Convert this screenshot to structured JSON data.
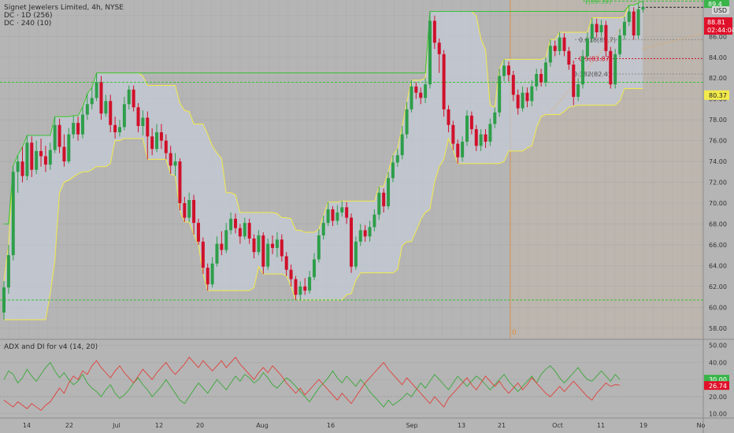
{
  "header": {
    "symbol_line": "Signet Jewelers Limited, 4h, NYSE",
    "indicator_1": "DC · 1D (256)",
    "indicator_2": "DC · 240 (10)",
    "currency": "USD"
  },
  "lower_pane": {
    "title": "ADX and DI for v4 (14, 20)"
  },
  "price_axis": {
    "ticks": [
      "86.00",
      "84.00",
      "82.00",
      "80.00",
      "78.00",
      "76.00",
      "74.00",
      "72.00",
      "70.00",
      "68.00",
      "66.00",
      "64.00",
      "62.00",
      "60.00",
      "58.00"
    ],
    "top_tag": "89.4",
    "price_tag_value": "88.81",
    "price_tag_countdown": "02:44:04",
    "level_tag": "80.37"
  },
  "oscillator_axis": {
    "ticks": [
      "50.00",
      "40.00",
      "30.00",
      "20.00",
      "10.00"
    ],
    "green_tag": "30.00",
    "red_tag": "26.74"
  },
  "time_axis": {
    "labels": [
      "14",
      "22",
      "Jul",
      "12",
      "20",
      "Aug",
      "16",
      "Sep",
      "13",
      "21",
      "Oct",
      "11",
      "19",
      "No"
    ]
  },
  "fib_labels": {
    "level_1": "1(89.39)",
    "level_0618": "0.618(85.7)",
    "level_05": "0.5(83.87)",
    "level_0382": "0.382(82.4)"
  },
  "marker": {
    "label": "0"
  },
  "colors": {
    "bull": "#2e9e4a",
    "bear": "#d0102a",
    "donchian": "#f2ea4a",
    "dc_fill": "#c4ccd8",
    "green_line": "#36c236",
    "fib": "#8a8a8a",
    "di_plus": "#3aa83a",
    "di_minus": "#e0403a"
  },
  "chart_data": [
    {
      "type": "candlestick",
      "title": "Signet Jewelers Limited, 4h, NYSE",
      "ylim": [
        57,
        89.5
      ],
      "levels": [
        60.7,
        81.6,
        89.4,
        88.8
      ],
      "fib": {
        "high": 89.39,
        "0.618": 85.7,
        "0.5": 83.87,
        "0.382": 82.4
      },
      "candles": [
        [
          59.5,
          61.9,
          58.8,
          62.5
        ],
        [
          61.9,
          65,
          61.3,
          66
        ],
        [
          65,
          73,
          64.5,
          73.6
        ],
        [
          73,
          74,
          71,
          74.6
        ],
        [
          74,
          72.6,
          72,
          75.4
        ],
        [
          72.6,
          75.8,
          72.2,
          76.5
        ],
        [
          75.8,
          73.2,
          72.5,
          76.4
        ],
        [
          73.2,
          75,
          72.8,
          76
        ],
        [
          75,
          74.5,
          73.5,
          76.2
        ],
        [
          74.5,
          73.7,
          73,
          75.5
        ],
        [
          73.7,
          75.1,
          73.2,
          75.8
        ],
        [
          75.1,
          77.5,
          74.8,
          78.3
        ],
        [
          77.5,
          75.4,
          74.8,
          78.1
        ],
        [
          75.4,
          74,
          73.5,
          76.6
        ],
        [
          74,
          76.6,
          73.8,
          77.2
        ],
        [
          76.6,
          77.7,
          76.2,
          78.4
        ],
        [
          77.7,
          76.6,
          76,
          78.3
        ],
        [
          76.6,
          78.5,
          76.2,
          79.2
        ],
        [
          78.5,
          79.5,
          78,
          80.5
        ],
        [
          79.5,
          80.1,
          79,
          81.1
        ],
        [
          80.1,
          81.6,
          79.8,
          82.5
        ],
        [
          81.6,
          78.6,
          78,
          82.2
        ],
        [
          78.6,
          79.8,
          78.3,
          80.4
        ],
        [
          79.8,
          77.5,
          76.8,
          80.4
        ],
        [
          77.5,
          76.8,
          76.2,
          78.3
        ],
        [
          76.8,
          77.3,
          76.4,
          78
        ],
        [
          77.3,
          79.5,
          77,
          80.2
        ],
        [
          79.5,
          80.9,
          79,
          81.3
        ],
        [
          80.9,
          79.2,
          78.8,
          81.3
        ],
        [
          79.2,
          77.4,
          76.8,
          79.6
        ],
        [
          77.4,
          78.2,
          76.5,
          78.9
        ],
        [
          78.2,
          76.4,
          74.2,
          78.8
        ],
        [
          76.4,
          75.2,
          74.6,
          77.2
        ],
        [
          75.2,
          76.8,
          74.9,
          77.6
        ],
        [
          76.8,
          76,
          75.2,
          77.6
        ],
        [
          76,
          74.8,
          74.2,
          76.6
        ],
        [
          74.8,
          73.6,
          72.8,
          75.5
        ],
        [
          73.6,
          74,
          72.6,
          74.8
        ],
        [
          74,
          70,
          69.3,
          74.3
        ],
        [
          70,
          68.6,
          68.2,
          70.6
        ],
        [
          68.6,
          70.3,
          68.2,
          71
        ],
        [
          70.3,
          68.1,
          67,
          70.8
        ],
        [
          68.1,
          66.3,
          66,
          68.5
        ],
        [
          66.3,
          63.8,
          63.2,
          66.7
        ],
        [
          63.8,
          62.2,
          61.6,
          64.2
        ],
        [
          62.2,
          64.2,
          61.9,
          64.8
        ],
        [
          64.2,
          66.1,
          63.9,
          66.8
        ],
        [
          66.1,
          65.5,
          65,
          67.3
        ],
        [
          65.5,
          67.4,
          65.2,
          68.1
        ],
        [
          67.4,
          68.5,
          67,
          69.1
        ],
        [
          68.5,
          67.6,
          67.1,
          69
        ],
        [
          67.6,
          66.8,
          66.1,
          68
        ],
        [
          66.8,
          68.1,
          66.5,
          68.6
        ],
        [
          68.1,
          66.6,
          66.1,
          68.5
        ],
        [
          66.6,
          65.3,
          64.7,
          67
        ],
        [
          65.3,
          66.9,
          65,
          67.4
        ],
        [
          66.9,
          63.9,
          63.2,
          67.2
        ],
        [
          63.9,
          66.1,
          63.6,
          66.6
        ],
        [
          66.1,
          65.7,
          65.1,
          66.9
        ],
        [
          65.7,
          66.5,
          64.8,
          67.2
        ],
        [
          66.5,
          64.9,
          64.4,
          67
        ],
        [
          64.9,
          63.6,
          63,
          65.3
        ],
        [
          63.6,
          62.7,
          62,
          64.1
        ],
        [
          62.7,
          61.2,
          60.7,
          63
        ],
        [
          61.2,
          62,
          60.7,
          62.5
        ],
        [
          62,
          61.6,
          61.2,
          62.8
        ],
        [
          61.6,
          62.9,
          61.3,
          63.5
        ],
        [
          62.9,
          64.6,
          62.6,
          65.2
        ],
        [
          64.6,
          66.9,
          64.3,
          67.5
        ],
        [
          66.9,
          68.1,
          66.5,
          68.8
        ],
        [
          68.1,
          69.4,
          67.8,
          70.1
        ],
        [
          69.4,
          68.3,
          67.8,
          69.7
        ],
        [
          68.3,
          69.1,
          67.9,
          69.8
        ],
        [
          69.1,
          69.6,
          68.7,
          70.2
        ],
        [
          69.6,
          68.6,
          68,
          70.1
        ],
        [
          68.6,
          63.9,
          63.3,
          69
        ],
        [
          63.9,
          66.3,
          63.6,
          66.8
        ],
        [
          66.3,
          67.4,
          65.9,
          68
        ],
        [
          67.4,
          66.8,
          66.3,
          67.9
        ],
        [
          66.8,
          67.7,
          66.3,
          68.3
        ],
        [
          67.7,
          68.9,
          67.3,
          69.4
        ],
        [
          68.9,
          71,
          68.4,
          71.6
        ],
        [
          71,
          69.7,
          69.1,
          71.4
        ],
        [
          69.7,
          72.4,
          69.4,
          73
        ],
        [
          72.4,
          73.9,
          72,
          74.6
        ],
        [
          73.9,
          74.6,
          73.5,
          75.2
        ],
        [
          74.6,
          76.6,
          74.2,
          77.4
        ],
        [
          76.6,
          79,
          76.2,
          79.7
        ],
        [
          79,
          81.2,
          78.7,
          81.8
        ],
        [
          81.2,
          80.6,
          80,
          81.6
        ],
        [
          80.6,
          80.1,
          79.5,
          81.1
        ],
        [
          80.1,
          81.4,
          79.6,
          82
        ],
        [
          81.4,
          87.5,
          81,
          88.4
        ],
        [
          87.5,
          85.4,
          84.8,
          88
        ],
        [
          85.4,
          84.3,
          82.5,
          85.8
        ],
        [
          84.3,
          79,
          78.3,
          84.7
        ],
        [
          79,
          77.5,
          76.8,
          79.4
        ],
        [
          77.5,
          75.7,
          75.1,
          77.9
        ],
        [
          75.7,
          74.4,
          73.8,
          76.1
        ],
        [
          74.4,
          75.9,
          74,
          76.4
        ],
        [
          75.9,
          78.4,
          75.5,
          78.9
        ],
        [
          78.4,
          77.1,
          76.6,
          78.8
        ],
        [
          77.1,
          75.5,
          75,
          77.5
        ],
        [
          75.5,
          76.6,
          75,
          77.1
        ],
        [
          76.6,
          75.9,
          75.3,
          77.1
        ],
        [
          75.9,
          77.6,
          75.5,
          78.1
        ],
        [
          77.6,
          78.7,
          77.2,
          79.2
        ],
        [
          78.7,
          82.2,
          78.3,
          82.9
        ],
        [
          82.2,
          83.2,
          81.7,
          83.8
        ],
        [
          83.2,
          82.3,
          81.7,
          83.6
        ],
        [
          82.3,
          80.4,
          79.8,
          82.7
        ],
        [
          80.4,
          79.1,
          78.5,
          80.9
        ],
        [
          79.1,
          80.6,
          78.8,
          81.2
        ],
        [
          80.6,
          79.8,
          79.2,
          81.1
        ],
        [
          79.8,
          81.2,
          79.3,
          81.8
        ],
        [
          81.2,
          82.4,
          80.8,
          82.9
        ],
        [
          82.4,
          81.6,
          81.2,
          82.9
        ],
        [
          81.6,
          83.5,
          81.2,
          84
        ],
        [
          83.5,
          85.1,
          83.1,
          85.7
        ],
        [
          85.1,
          84.6,
          84.1,
          85.6
        ],
        [
          84.6,
          85.9,
          84.2,
          86.4
        ],
        [
          85.9,
          84.6,
          84.1,
          86.3
        ],
        [
          84.6,
          83.3,
          82.8,
          85
        ],
        [
          83.3,
          80.2,
          79.4,
          83.7
        ],
        [
          80.2,
          81.4,
          79.8,
          82
        ],
        [
          81.4,
          84.1,
          81,
          84.7
        ],
        [
          84.1,
          85.8,
          83.7,
          86.4
        ],
        [
          85.8,
          87.2,
          85.4,
          87.8
        ],
        [
          87.2,
          86.4,
          85.9,
          87.7
        ],
        [
          86.4,
          87.1,
          86,
          87.6
        ],
        [
          87.1,
          84.6,
          84.1,
          87.5
        ],
        [
          84.6,
          81.4,
          81,
          85
        ],
        [
          81.4,
          84.3,
          81,
          84.8
        ],
        [
          84.3,
          86.1,
          84,
          86.7
        ],
        [
          86.1,
          87.4,
          85.7,
          87.9
        ],
        [
          87.4,
          88.4,
          87,
          89
        ],
        [
          88.4,
          86.1,
          85.7,
          88.8
        ],
        [
          86.1,
          88.6,
          85.8,
          89.2
        ],
        [
          88.6,
          88.81,
          88.3,
          89.39
        ]
      ]
    },
    {
      "type": "line",
      "title": "ADX and DI for v4 (14, 20)",
      "ylim": [
        8,
        53
      ],
      "series": [
        {
          "values": [
            30,
            35,
            33,
            28,
            31,
            36,
            32,
            29,
            33,
            37,
            40,
            35,
            31,
            34,
            30,
            27,
            29,
            33,
            28,
            25,
            23,
            20,
            24,
            27,
            22,
            19,
            21,
            24,
            28,
            31,
            27,
            24,
            20,
            23,
            26,
            30,
            26,
            22,
            18,
            16,
            20,
            24,
            28,
            25,
            22,
            26,
            30,
            27,
            24,
            28,
            32,
            29,
            33,
            31,
            28,
            30,
            34,
            31,
            27,
            25,
            28,
            31,
            29,
            26,
            23,
            20,
            17,
            21,
            25,
            28,
            31,
            35,
            31,
            28,
            32,
            29,
            26,
            30,
            27,
            23,
            20,
            17,
            14,
            18,
            15,
            17,
            19,
            22,
            20,
            24,
            28,
            25,
            29,
            33,
            30,
            27,
            24,
            28,
            32,
            29,
            26,
            29,
            32,
            30,
            27,
            24,
            27,
            30,
            33,
            29,
            26,
            23,
            26,
            29,
            32,
            28,
            33,
            36,
            38,
            35,
            31,
            28,
            31,
            34,
            37,
            33,
            30,
            29,
            32,
            35,
            32,
            29,
            33,
            30
          ]
        },
        {
          "values": [
            18,
            16,
            14,
            17,
            15,
            13,
            16,
            14,
            12,
            15,
            17,
            21,
            25,
            22,
            28,
            32,
            30,
            35,
            33,
            38,
            41,
            37,
            34,
            31,
            35,
            38,
            34,
            31,
            28,
            32,
            36,
            33,
            30,
            34,
            37,
            40,
            36,
            33,
            36,
            39,
            43,
            40,
            37,
            41,
            38,
            35,
            38,
            41,
            37,
            40,
            43,
            39,
            36,
            33,
            30,
            34,
            37,
            34,
            38,
            35,
            32,
            28,
            25,
            22,
            25,
            21,
            24,
            27,
            30,
            27,
            24,
            21,
            18,
            22,
            19,
            16,
            20,
            24,
            28,
            31,
            34,
            37,
            40,
            36,
            33,
            30,
            27,
            31,
            28,
            25,
            22,
            19,
            16,
            20,
            17,
            14,
            19,
            22,
            25,
            28,
            31,
            27,
            24,
            28,
            32,
            29,
            26,
            29,
            25,
            22,
            25,
            28,
            24,
            27,
            31,
            28,
            25,
            22,
            20,
            23,
            26,
            23,
            26,
            29,
            26,
            23,
            20,
            18,
            22,
            25,
            28,
            26,
            27,
            26.74
          ]
        }
      ]
    }
  ]
}
